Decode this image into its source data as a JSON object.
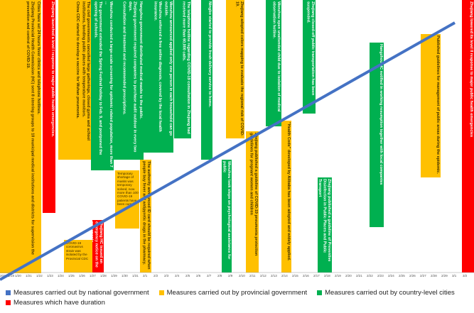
{
  "timeline": {
    "dates": [
      "2020/1/19",
      "1/20",
      "1/21",
      "1/22",
      "1/23",
      "1/24",
      "1/25",
      "1/26",
      "1/27",
      "1/28",
      "1/29",
      "1/30",
      "1/31",
      "2/1",
      "2/2",
      "2/3",
      "2/4",
      "2/5",
      "2/6",
      "2/7",
      "2/8",
      "2/9",
      "2/10",
      "2/11",
      "2/12",
      "2/13",
      "2/14",
      "2/15",
      "2/16",
      "2/17",
      "2/18",
      "2/19",
      "2/20",
      "2/21",
      "2/22",
      "2/23",
      "2/24",
      "2/25",
      "2/26",
      "2/27",
      "2/28",
      "2/29",
      "3/1",
      "3/2"
    ],
    "events": [
      {
        "color": "#ffc000",
        "lines": [
          "Cities have set 24 hours fever clinics and telephone hotlines.",
          "Zhejiang Provincial Health Commission (HC) sent 8 steering groups to 10 municipal medical institutions and districts for supervision the prevention and control of COVID-19."
        ]
      },
      {
        "color": "#ff0000",
        "lines": [
          "Zhejiang launched a level I response to major public health emergencies."
        ]
      },
      {
        "color": "#ffc000",
        "lines": [
          "The civil governments cancelled large gatherings, closed gyms and school institutions, bonding public places with temperature monitors.",
          "China CDC started to develop a vaccine for Wuhan pneumonia."
        ]
      },
      {
        "color": "#ffc000",
        "lines": [
          "COVID-19 coronavirus strain was isolated by the Provincial CDC"
        ]
      },
      {
        "color": "#ff0000",
        "lines": [
          "Zhejiang HC issued an emergency notice on the pneumonia"
        ]
      },
      {
        "color": "#00b050",
        "lines": [
          "Wenzhou conducted a large-scale screening for epidemic related population, more than 7 ...",
          "The government extended the Spring Festival holiday to Feb. 9, and postponed the opening of schools."
        ]
      },
      {
        "color": "#ffc000",
        "lines": [
          "Temporary shortage of masks was temporary solved, now more than 100 COVID-19 patients have been cured."
        ]
      },
      {
        "color": "#00b050",
        "lines": [
          "Hangzhou government distributed medical masks to the public.",
          "Zhejiang government required companies to purchase audit outdoor in every two days.",
          "Consultation and treatment and recommended prescriptions."
        ]
      },
      {
        "color": "#00b050",
        "lines": [
          "Wenzhou announced applied only one person in each household can go outside.",
          "Wenzhou enforced a free online diagnosis, covered by the local health insurance."
        ]
      },
      {
        "color": "#ffc000",
        "lines": [
          "The authority announced ID card should be required when people buy fever and antipyretic drugs in the pharmacy."
        ]
      },
      {
        "color": "#00b050",
        "lines": [
          "The telephone hotline regarding COVID-19 consultation in Zhejiang had received more than 60,000 calls."
        ]
      },
      {
        "color": "#00b050",
        "lines": [
          "Ningbo started to provide fresh delivery service to home."
        ]
      },
      {
        "color": "#00b050",
        "lines": [
          "Wenzhou took steps on psychological assistance for public"
        ]
      },
      {
        "color": "#ffc000",
        "lines": [
          "Zhejiang adopted colors mapping to evaluate the regional risk of COVID-19."
        ]
      },
      {
        "color": "#ffc000",
        "lines": [
          "Zhejiang published a guideline of COVID-19 pneumonia protection guidelines for pregnant women and children"
        ]
      },
      {
        "color": "#00b050",
        "lines": [
          "Wenzhou open unattended child due to isolation of medical observation hotline."
        ]
      },
      {
        "color": "#ffc000",
        "lines": [
          "\"Health Code\" developed by Alibaba has been adopted and widely applied."
        ]
      },
      {
        "color": "#00b050",
        "lines": [
          "Zhejiang closed-off public transportation has been suspended."
        ]
      },
      {
        "color": "#00b050",
        "lines": [
          "Zhejiang published a guideline of Preventive Disinfection in Public Places and Public Transport"
        ]
      },
      {
        "color": "#00b050",
        "lines": [
          "Hangzhou HC notified in working resumption together with local companies"
        ]
      },
      {
        "color": "#ffc000",
        "lines": [
          "Published guidelines for management of public areas during the epidemic."
        ]
      },
      {
        "color": "#ff0000",
        "lines": [
          "Zhejiang lowered its level II response to major public health emergencies"
        ]
      }
    ]
  },
  "legend": [
    {
      "color": "#4472c4",
      "label": "Measures carried out by national government"
    },
    {
      "color": "#ffc000",
      "label": "Measures  carried out by provincial government"
    },
    {
      "color": "#00b050",
      "label": "Measures carried out by country-level cities"
    },
    {
      "color": "#ff0000",
      "label": "Measures which have duration"
    }
  ]
}
